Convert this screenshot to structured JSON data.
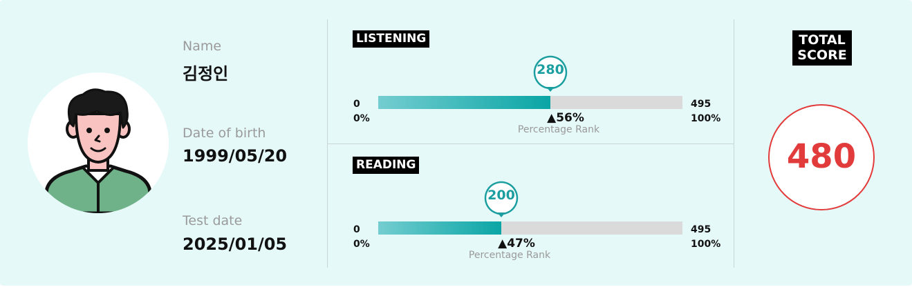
{
  "profile": {
    "name_label": "Name",
    "name_value": "김정인",
    "dob_label": "Date of birth",
    "dob_value": "1999/05/20",
    "test_label": "Test date",
    "test_value": "2025/01/05"
  },
  "listening": {
    "title": "LISTENING",
    "score": "280",
    "score_fraction": 0.566,
    "min": "0",
    "max": "495",
    "min_pct": "0%",
    "max_pct": "100%",
    "rank": "▲56%",
    "rank_label": "Percentage Rank"
  },
  "reading": {
    "title": "READING",
    "score": "200",
    "score_fraction": 0.404,
    "min": "0",
    "max": "495",
    "min_pct": "0%",
    "max_pct": "100%",
    "rank": "▲47%",
    "rank_label": "Percentage Rank"
  },
  "total": {
    "title_line1": "TOTAL",
    "title_line2": "SCORE",
    "score": "480"
  },
  "colors": {
    "background": "#e6f9f9",
    "bar_fill_start": "#74cdd0",
    "bar_fill_end": "#0aa5a5",
    "bar_track": "#dadada",
    "pin": "#1a9ea0",
    "total": "#e23b3b"
  },
  "icons": {
    "avatar": "person-avatar-icon",
    "pin": "score-pin-icon"
  }
}
